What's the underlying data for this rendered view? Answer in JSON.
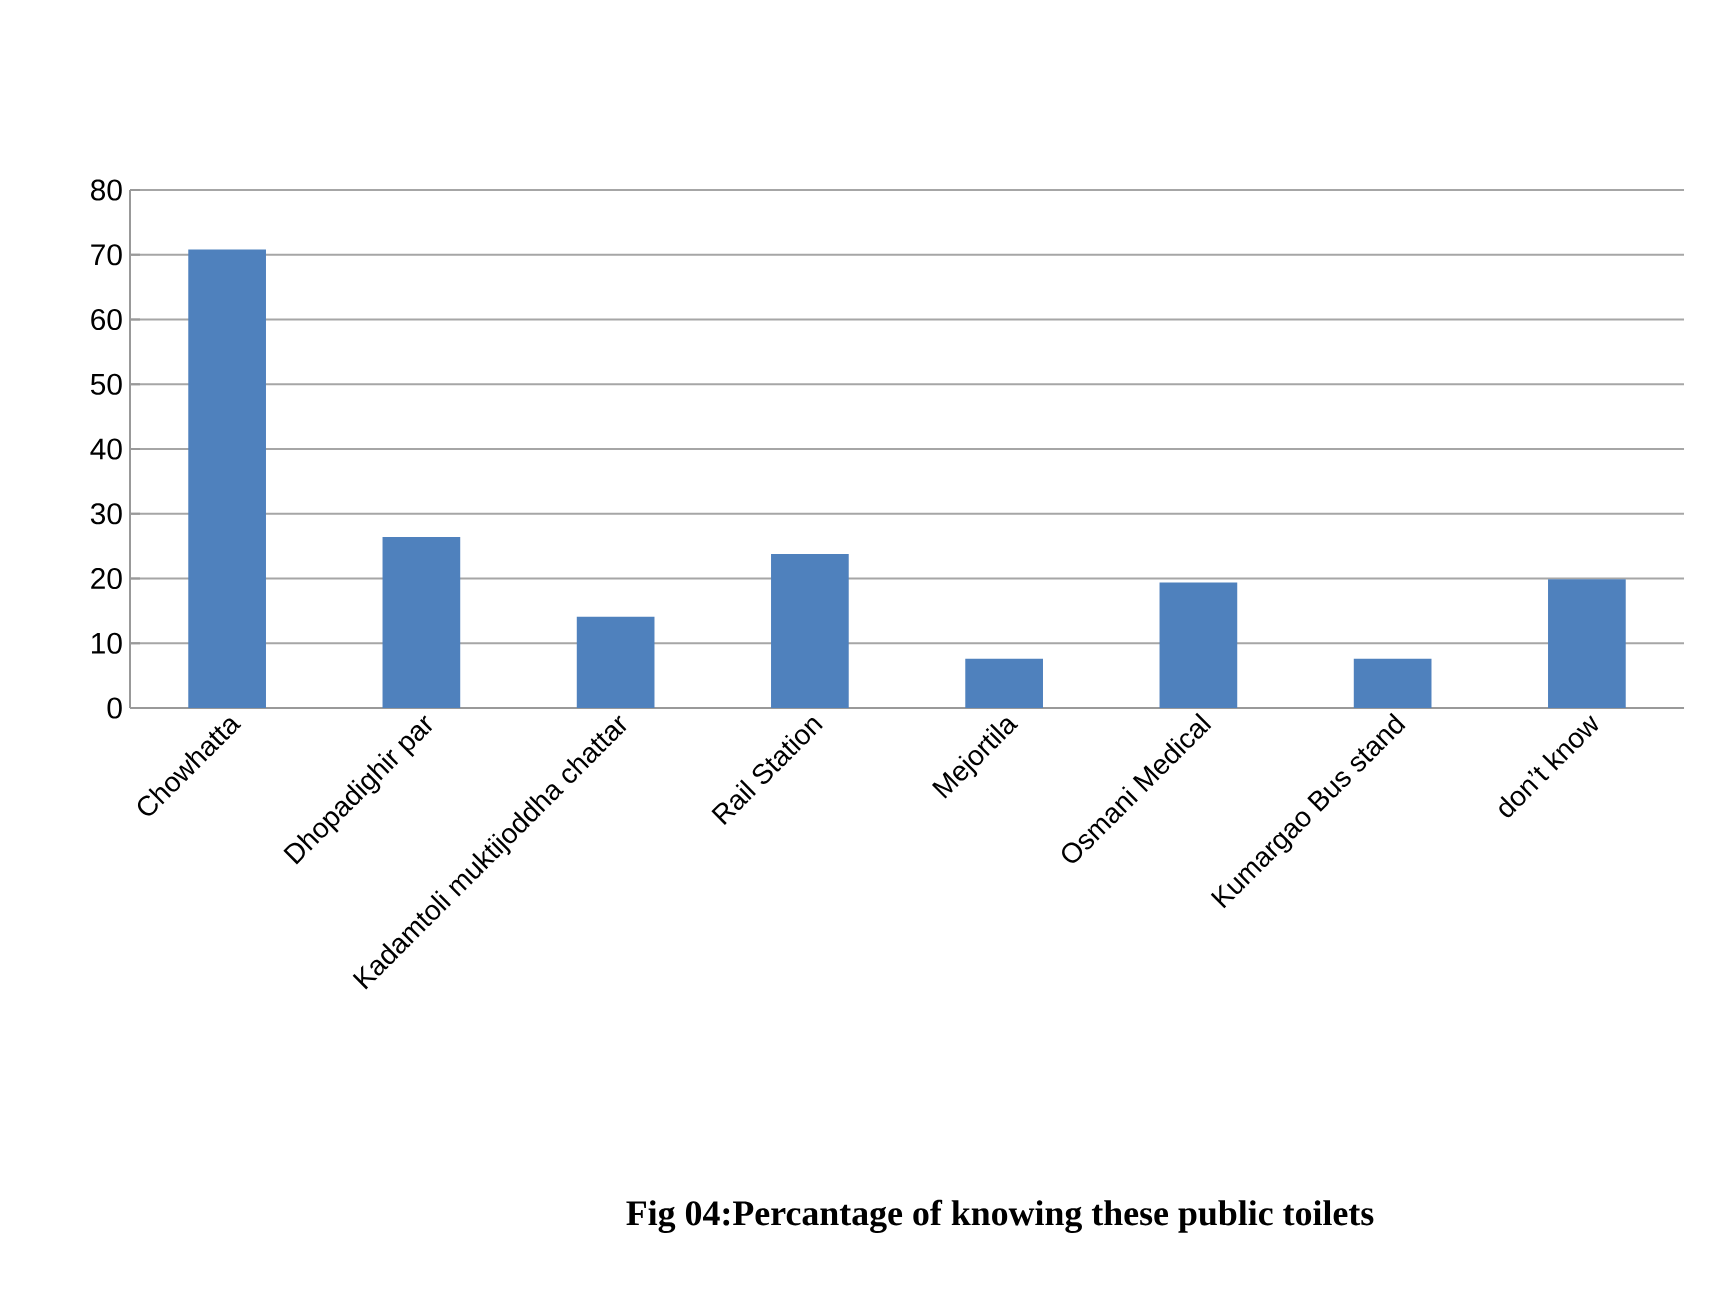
{
  "chart_data": {
    "type": "bar",
    "title": "Fig 04:Percantage of knowing these public toilets",
    "categories": [
      "Chowhatta",
      "Dhopadighir par",
      "Kadamtoli muktijoddha chattar",
      "Rail Station",
      "Mejortila",
      "Osmani Medical",
      "Kumargao Bus stand",
      "don’t know"
    ],
    "values": [
      70.8,
      26.4,
      14.1,
      23.8,
      7.6,
      19.4,
      7.6,
      19.9
    ],
    "color": "#4f81bd",
    "ylim": [
      0,
      80
    ],
    "yticks": [
      0,
      10,
      20,
      30,
      40,
      50,
      60,
      70,
      80
    ],
    "grid": "y"
  }
}
